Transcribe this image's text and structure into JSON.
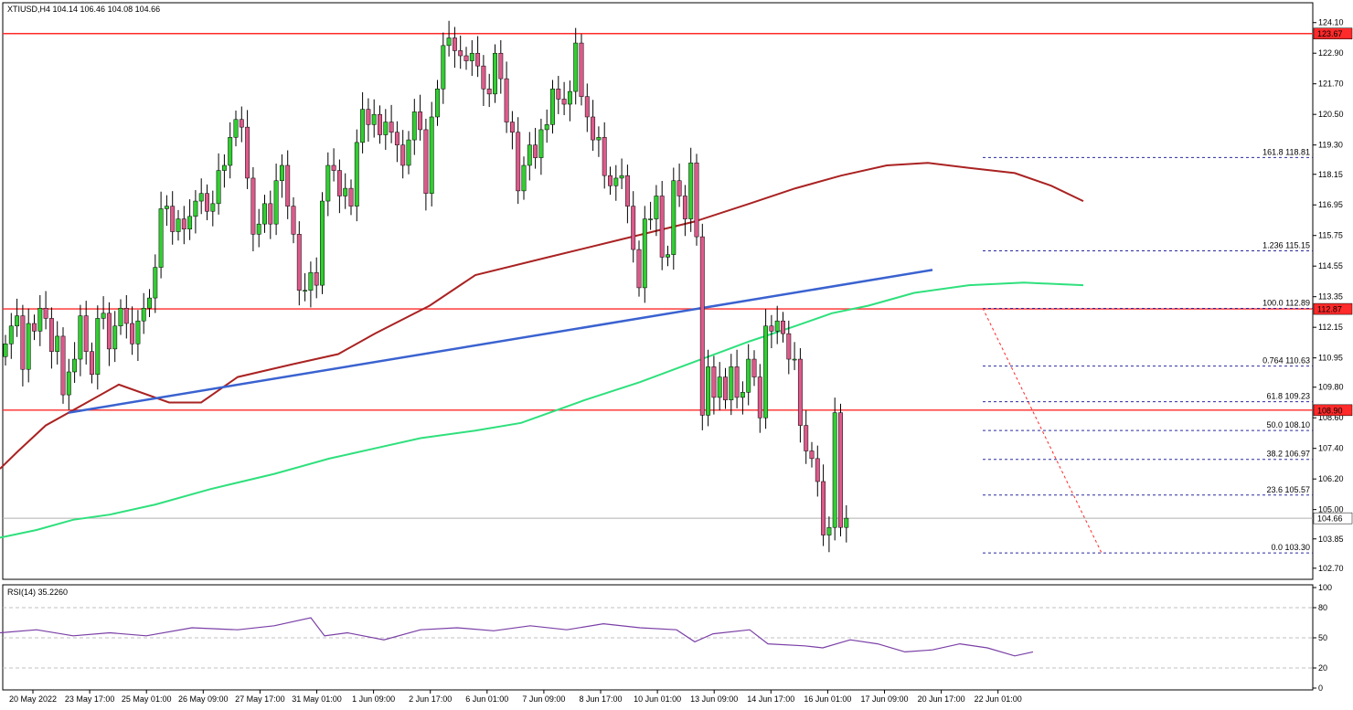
{
  "chart_data": {
    "type": "candlestick",
    "symbol_header": "XTIUSD,H4  104.14 106.46 104.08 104.66",
    "colors": {
      "bull": "#32cd32",
      "bear": "#dc5a8a",
      "ma_slow": "#aa2222",
      "ma_fast": "#2ee07c",
      "trend": "#3a62d0",
      "level": "#ff2a2a",
      "fib": "#2a2aa0",
      "rsi": "#7a3fa6"
    },
    "price_axis": {
      "min": 102.3,
      "max": 124.7,
      "ticks": [
        "124.10",
        "122.90",
        "121.70",
        "120.50",
        "119.30",
        "118.15",
        "116.95",
        "115.75",
        "114.55",
        "113.35",
        "112.15",
        "110.95",
        "109.80",
        "108.60",
        "107.40",
        "106.20",
        "105.00",
        "103.85",
        "102.70"
      ]
    },
    "price_tags": [
      {
        "value": 123.67,
        "text": "123.67",
        "bg": "#ff2a2a",
        "fg": "#ffffff"
      },
      {
        "value": 112.87,
        "text": "112.87",
        "bg": "#ff2a2a",
        "fg": "#ffffff"
      },
      {
        "value": 108.9,
        "text": "108.90",
        "bg": "#ff2a2a",
        "fg": "#ffffff"
      },
      {
        "value": 104.66,
        "text": "104.66",
        "bg": "#ffffff",
        "fg": "#000000"
      }
    ],
    "horizontal_levels": [
      123.67,
      112.87,
      108.9
    ],
    "last_price": 104.66,
    "fib_levels": [
      {
        "label": "161.8 118.81",
        "value": 118.81
      },
      {
        "label": "1.236 115.15",
        "value": 115.15
      },
      {
        "label": "100.0 112.89",
        "value": 112.89
      },
      {
        "label": "0.764 110.63",
        "value": 110.63
      },
      {
        "label": "61.8 109.23",
        "value": 109.23
      },
      {
        "label": "50.0 108.10",
        "value": 108.1
      },
      {
        "label": "38.2 106.97",
        "value": 106.97
      },
      {
        "label": "23.6 105.57",
        "value": 105.57
      },
      {
        "label": "0.0 103.30",
        "value": 103.3
      }
    ],
    "x_labels": [
      "20 May 2022",
      "23 May 17:00",
      "25 May 01:00",
      "26 May 09:00",
      "27 May 17:00",
      "31 May 01:00",
      "1 Jun 09:00",
      "2 Jun 17:00",
      "6 Jun 01:00",
      "7 Jun 09:00",
      "8 Jun 17:00",
      "10 Jun 01:00",
      "13 Jun 09:00",
      "14 Jun 17:00",
      "16 Jun 01:00",
      "17 Jun 09:00",
      "20 Jun 17:00",
      "22 Jun 01:00"
    ],
    "closes": [
      111.5,
      112.2,
      112.6,
      110.5,
      112.3,
      112.0,
      112.9,
      112.5,
      111.2,
      111.8,
      109.5,
      110.4,
      110.9,
      112.6,
      111.2,
      110.3,
      112.5,
      112.7,
      111.3,
      112.2,
      112.9,
      112.3,
      111.5,
      112.4,
      112.9,
      113.3,
      114.5,
      116.8,
      116.9,
      115.9,
      116.4,
      116.0,
      116.5,
      117.1,
      117.4,
      116.7,
      117.0,
      118.3,
      118.5,
      119.6,
      120.3,
      120.0,
      118.0,
      115.8,
      116.2,
      117.0,
      116.2,
      117.9,
      118.5,
      116.9,
      115.8,
      113.6,
      113.6,
      114.3,
      113.8,
      117.1,
      118.5,
      118.3,
      117.3,
      117.6,
      116.9,
      119.4,
      120.7,
      120.1,
      120.5,
      119.7,
      120.2,
      119.8,
      119.3,
      118.5,
      119.5,
      120.6,
      119.9,
      117.4,
      120.4,
      121.5,
      123.2,
      123.5,
      123.0,
      122.8,
      122.6,
      122.9,
      122.4,
      121.5,
      121.3,
      122.9,
      121.9,
      120.2,
      119.8,
      117.5,
      118.5,
      119.3,
      118.8,
      119.9,
      120.1,
      121.5,
      121.1,
      120.9,
      121.4,
      123.3,
      121.2,
      120.4,
      119.5,
      119.6,
      118.1,
      117.7,
      118.0,
      118.1,
      116.9,
      115.2,
      113.7,
      116.4,
      116.4,
      117.3,
      114.9,
      115.0,
      117.9,
      117.3,
      116.4,
      118.6,
      115.7,
      108.7,
      110.6,
      109.4,
      110.2,
      109.3,
      110.6,
      109.4,
      109.6,
      110.9,
      110.2,
      108.6,
      112.2,
      112.0,
      112.4,
      111.9,
      110.9,
      110.9,
      108.3,
      107.3,
      107.0,
      106.1,
      104.0,
      104.3,
      108.8,
      104.3,
      104.66
    ],
    "ma_slow": [
      [
        0,
        106.6
      ],
      [
        20,
        107.3
      ],
      [
        50,
        108.3
      ],
      [
        95,
        109.2
      ],
      [
        130,
        109.9
      ],
      [
        185,
        109.2
      ],
      [
        220,
        109.2
      ],
      [
        260,
        110.2
      ],
      [
        320,
        110.7
      ],
      [
        370,
        111.1
      ],
      [
        410,
        111.9
      ],
      [
        470,
        113.0
      ],
      [
        520,
        114.2
      ],
      [
        600,
        114.9
      ],
      [
        680,
        115.6
      ],
      [
        760,
        116.3
      ],
      [
        820,
        117.0
      ],
      [
        870,
        117.6
      ],
      [
        920,
        118.1
      ],
      [
        970,
        118.5
      ],
      [
        1015,
        118.6
      ],
      [
        1060,
        118.4
      ],
      [
        1110,
        118.2
      ],
      [
        1150,
        117.7
      ],
      [
        1185,
        117.1
      ]
    ],
    "ma_fast": [
      [
        0,
        103.9
      ],
      [
        40,
        104.2
      ],
      [
        80,
        104.6
      ],
      [
        120,
        104.8
      ],
      [
        170,
        105.2
      ],
      [
        230,
        105.8
      ],
      [
        300,
        106.4
      ],
      [
        360,
        107.0
      ],
      [
        410,
        107.4
      ],
      [
        460,
        107.8
      ],
      [
        520,
        108.1
      ],
      [
        570,
        108.4
      ],
      [
        640,
        109.3
      ],
      [
        700,
        110.0
      ],
      [
        760,
        110.8
      ],
      [
        820,
        111.6
      ],
      [
        870,
        112.2
      ],
      [
        910,
        112.7
      ],
      [
        950,
        113.0
      ],
      [
        1000,
        113.5
      ],
      [
        1060,
        113.8
      ],
      [
        1120,
        113.9
      ],
      [
        1185,
        113.8
      ]
    ],
    "trendline": [
      [
        75,
        108.8
      ],
      [
        1020,
        114.4
      ]
    ],
    "fib_dotted": [
      [
        1075,
        112.9
      ],
      [
        1205,
        103.3
      ]
    ],
    "rsi": {
      "label": "RSI(14) 35.2260",
      "range": [
        0,
        100
      ],
      "levels": [
        80,
        50,
        20
      ],
      "ticks": [
        "100",
        "80",
        "50",
        "20",
        "0"
      ],
      "values": [
        [
          0,
          55
        ],
        [
          40,
          58
        ],
        [
          80,
          52
        ],
        [
          120,
          55
        ],
        [
          160,
          52
        ],
        [
          210,
          60
        ],
        [
          260,
          58
        ],
        [
          300,
          62
        ],
        [
          340,
          70
        ],
        [
          355,
          52
        ],
        [
          380,
          55
        ],
        [
          420,
          48
        ],
        [
          460,
          58
        ],
        [
          500,
          60
        ],
        [
          540,
          57
        ],
        [
          580,
          62
        ],
        [
          620,
          58
        ],
        [
          660,
          64
        ],
        [
          700,
          60
        ],
        [
          740,
          58
        ],
        [
          760,
          46
        ],
        [
          780,
          54
        ],
        [
          820,
          58
        ],
        [
          840,
          44
        ],
        [
          880,
          42
        ],
        [
          900,
          40
        ],
        [
          930,
          48
        ],
        [
          960,
          44
        ],
        [
          990,
          36
        ],
        [
          1020,
          38
        ],
        [
          1050,
          44
        ],
        [
          1080,
          40
        ],
        [
          1110,
          32
        ],
        [
          1130,
          36
        ]
      ]
    }
  }
}
